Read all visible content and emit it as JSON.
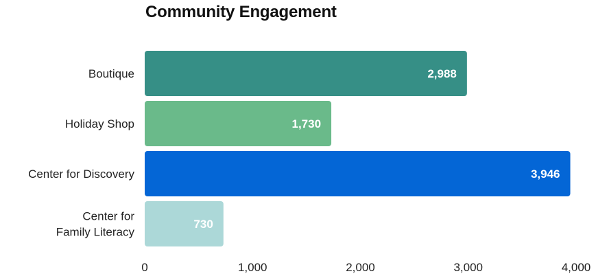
{
  "chart_data": {
    "type": "bar",
    "orientation": "horizontal",
    "title": "Community Engagement",
    "categories": [
      [
        "Boutique"
      ],
      [
        "Holiday Shop"
      ],
      [
        "Center for Discovery"
      ],
      [
        "Center for",
        "Family Literacy"
      ]
    ],
    "values": [
      2988,
      1730,
      3946,
      730
    ],
    "value_labels": [
      "2,988",
      "1,730",
      "3,946",
      "730"
    ],
    "bar_colors": [
      "#368f86",
      "#6aba8a",
      "#0466d6",
      "#acd8d8"
    ],
    "xlim": [
      0,
      4000
    ],
    "x_ticks": [
      0,
      1000,
      2000,
      3000,
      4000
    ],
    "x_tick_labels": [
      "0",
      "1,000",
      "2,000",
      "3,000",
      "4,000"
    ],
    "xlabel": "",
    "ylabel": "",
    "grid": false,
    "legend": "none"
  }
}
